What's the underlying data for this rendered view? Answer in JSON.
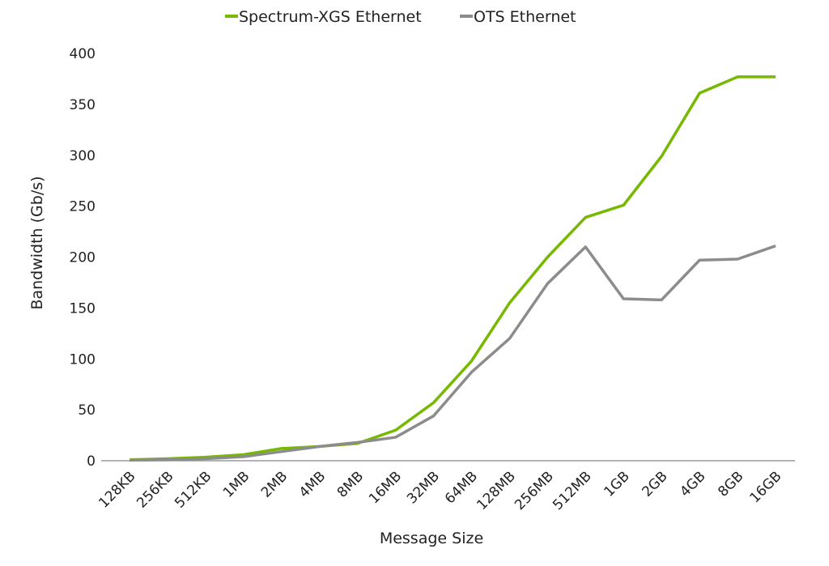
{
  "chart_data": {
    "type": "line",
    "title": "",
    "xlabel": "Message Size",
    "ylabel": "Bandwidth (Gb/s)",
    "ylim": [
      0,
      400
    ],
    "yticks": [
      0,
      50,
      100,
      150,
      200,
      250,
      300,
      350,
      400
    ],
    "grid": false,
    "legend": "top-center",
    "categories": [
      "128KB",
      "256KB",
      "512KB",
      "1MB",
      "2MB",
      "4MB",
      "8MB",
      "16MB",
      "32MB",
      "64MB",
      "128MB",
      "256MB",
      "512MB",
      "1GB",
      "2GB",
      "4GB",
      "8GB",
      "16GB"
    ],
    "series": [
      {
        "name": "Spectrum-XGS Ethernet",
        "color": "#76b900",
        "values": [
          1,
          2,
          3.5,
          6,
          12,
          14,
          17,
          30,
          57,
          98,
          155,
          200,
          239,
          251,
          299,
          361,
          377,
          377
        ]
      },
      {
        "name": "OTS Ethernet",
        "color": "#8c8c8c",
        "values": [
          0.5,
          1,
          2,
          4,
          9,
          14,
          18,
          23,
          44,
          87,
          120,
          174,
          210,
          159,
          158,
          197,
          198,
          211
        ]
      }
    ]
  }
}
